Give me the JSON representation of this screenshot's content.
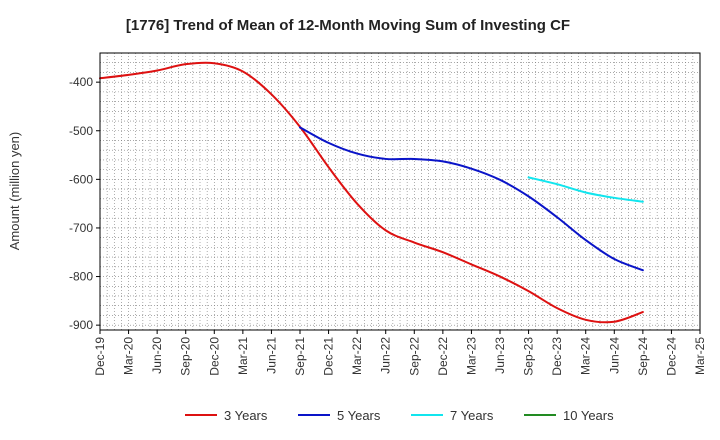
{
  "chart_data": {
    "type": "line",
    "title": "[1776]  Trend of Mean of 12-Month Moving Sum of Investing CF",
    "xlabel": "",
    "ylabel": "Amount (million yen)",
    "ylim": [
      -910,
      -340
    ],
    "yticks": [
      -400,
      -500,
      -600,
      -700,
      -800,
      -900
    ],
    "categories": [
      "Dec-19",
      "Mar-20",
      "Jun-20",
      "Sep-20",
      "Dec-20",
      "Mar-21",
      "Jun-21",
      "Sep-21",
      "Dec-21",
      "Mar-22",
      "Jun-22",
      "Sep-22",
      "Dec-22",
      "Mar-23",
      "Jun-23",
      "Sep-23",
      "Dec-23",
      "Mar-24",
      "Jun-24",
      "Sep-24",
      "Dec-24",
      "Mar-25"
    ],
    "grid": true,
    "legend_position": "bottom",
    "series": [
      {
        "name": "3 Years",
        "color": "#dd1111",
        "values": [
          -392,
          -385,
          -376,
          -363,
          -361,
          -378,
          -425,
          -492,
          -575,
          -650,
          -705,
          -730,
          -750,
          -775,
          -800,
          -830,
          -865,
          -889,
          -893,
          -873,
          null,
          null
        ]
      },
      {
        "name": "5 Years",
        "color": "#0a14c8",
        "values": [
          null,
          null,
          null,
          null,
          null,
          null,
          null,
          -493,
          -525,
          -547,
          -558,
          -558,
          -563,
          -578,
          -601,
          -635,
          -678,
          -725,
          -764,
          -787,
          null,
          null
        ]
      },
      {
        "name": "7 Years",
        "color": "#11e5ee",
        "values": [
          null,
          null,
          null,
          null,
          null,
          null,
          null,
          null,
          null,
          null,
          null,
          null,
          null,
          null,
          null,
          -596,
          -610,
          -627,
          -638,
          -646,
          null,
          null
        ]
      },
      {
        "name": "10 Years",
        "color": "#228B22",
        "values": [
          null,
          null,
          null,
          null,
          null,
          null,
          null,
          null,
          null,
          null,
          null,
          null,
          null,
          null,
          null,
          null,
          null,
          null,
          null,
          null,
          null,
          null
        ]
      }
    ]
  }
}
